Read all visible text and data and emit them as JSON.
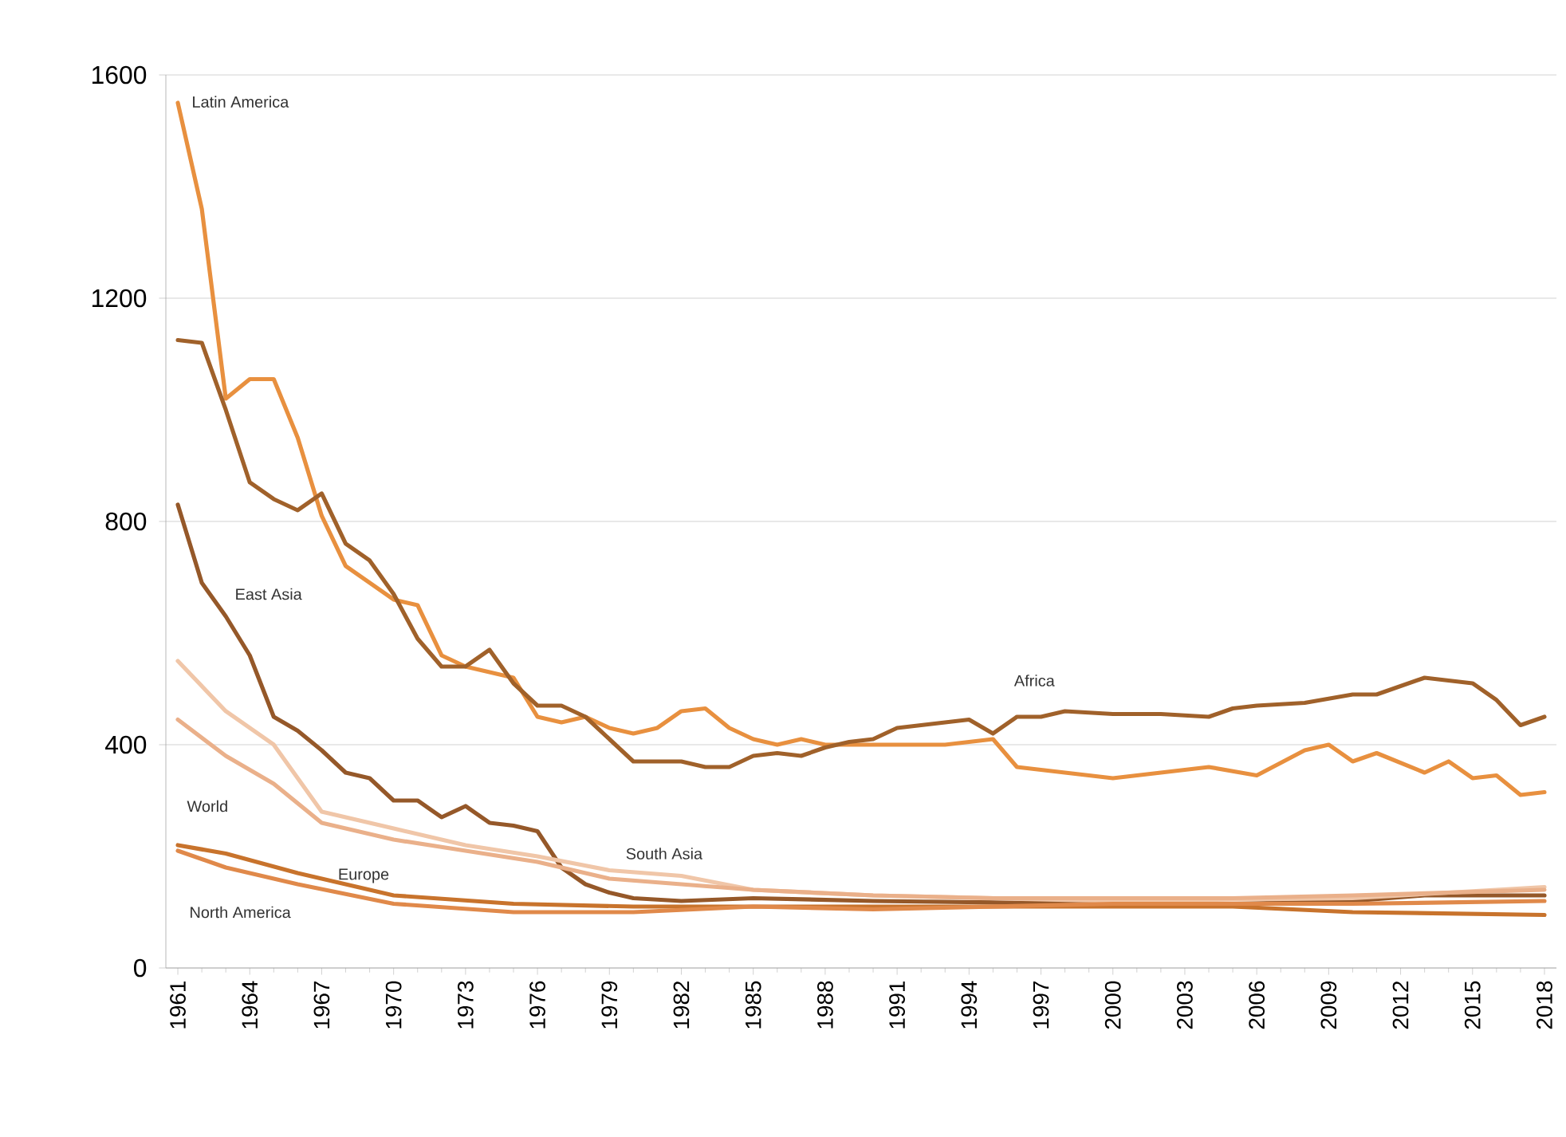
{
  "chart_data": {
    "type": "line",
    "xlim": [
      1960.5,
      2018.5
    ],
    "xticks": [
      1961,
      1964,
      1967,
      1970,
      1973,
      1976,
      1979,
      1982,
      1985,
      1988,
      1991,
      1994,
      1997,
      2000,
      2003,
      2006,
      2009,
      2012,
      2015,
      2018
    ],
    "ylim": [
      0,
      1600
    ],
    "yticks": [
      0,
      400,
      800,
      1200,
      1600
    ],
    "grid": "y",
    "marker": "none",
    "series": [
      {
        "name": "Latin America",
        "color": "#e8903f",
        "x": [
          1961,
          1962,
          1963,
          1964,
          1965,
          1966,
          1967,
          1968,
          1969,
          1970,
          1971,
          1972,
          1973,
          1974,
          1975,
          1976,
          1977,
          1978,
          1979,
          1980,
          1981,
          1982,
          1983,
          1984,
          1985,
          1986,
          1987,
          1988,
          1990,
          1993,
          1995,
          1996,
          1998,
          2000,
          2002,
          2004,
          2006,
          2008,
          2009,
          2010,
          2011,
          2013,
          2014,
          2015,
          2016,
          2017,
          2018
        ],
        "values": [
          1550,
          1360,
          1020,
          1055,
          1055,
          950,
          810,
          720,
          690,
          660,
          650,
          560,
          540,
          530,
          520,
          450,
          440,
          450,
          430,
          420,
          430,
          460,
          465,
          430,
          410,
          400,
          410,
          400,
          400,
          400,
          410,
          360,
          350,
          340,
          350,
          360,
          345,
          390,
          400,
          370,
          385,
          350,
          370,
          340,
          345,
          310,
          315
        ]
      },
      {
        "name": "Africa",
        "color": "#a0612a",
        "x": [
          1961,
          1962,
          1963,
          1964,
          1965,
          1966,
          1967,
          1968,
          1969,
          1970,
          1971,
          1972,
          1973,
          1974,
          1975,
          1976,
          1977,
          1978,
          1979,
          1980,
          1981,
          1982,
          1983,
          1984,
          1985,
          1986,
          1987,
          1988,
          1989,
          1990,
          1991,
          1992,
          1993,
          1994,
          1995,
          1996,
          1997,
          1998,
          2000,
          2002,
          2004,
          2005,
          2006,
          2008,
          2010,
          2011,
          2013,
          2014,
          2015,
          2016,
          2017,
          2018
        ],
        "values": [
          1125,
          1120,
          1000,
          870,
          840,
          820,
          850,
          760,
          730,
          670,
          590,
          540,
          540,
          570,
          510,
          470,
          470,
          450,
          410,
          370,
          370,
          370,
          360,
          360,
          380,
          385,
          380,
          395,
          405,
          410,
          430,
          435,
          440,
          445,
          420,
          450,
          450,
          460,
          455,
          455,
          450,
          465,
          470,
          475,
          490,
          490,
          520,
          515,
          510,
          480,
          435,
          450
        ]
      },
      {
        "name": "East Asia",
        "color": "#955829",
        "x": [
          1961,
          1962,
          1963,
          1964,
          1965,
          1966,
          1967,
          1968,
          1969,
          1970,
          1971,
          1972,
          1973,
          1974,
          1975,
          1976,
          1977,
          1978,
          1979,
          1980,
          1982,
          1985,
          1990,
          2000,
          2005,
          2010,
          2013,
          2018
        ],
        "values": [
          830,
          690,
          630,
          560,
          450,
          425,
          390,
          350,
          340,
          300,
          300,
          270,
          290,
          260,
          255,
          245,
          180,
          150,
          135,
          125,
          120,
          125,
          120,
          115,
          115,
          120,
          130,
          130
        ]
      },
      {
        "name": "South Asia",
        "color": "#f0c6a8",
        "x": [
          1961,
          1963,
          1965,
          1967,
          1970,
          1973,
          1976,
          1979,
          1982,
          1985,
          1990,
          2000,
          2010,
          2018
        ],
        "values": [
          550,
          460,
          400,
          280,
          250,
          220,
          200,
          175,
          165,
          140,
          130,
          120,
          125,
          145
        ]
      },
      {
        "name": "World",
        "color": "#eab08a",
        "x": [
          1961,
          1963,
          1965,
          1967,
          1970,
          1973,
          1976,
          1979,
          1982,
          1985,
          1990,
          1995,
          2000,
          2005,
          2010,
          2018
        ],
        "values": [
          445,
          380,
          330,
          260,
          230,
          210,
          190,
          160,
          150,
          140,
          130,
          125,
          125,
          125,
          130,
          140
        ]
      },
      {
        "name": "Europe",
        "color": "#c8732c",
        "x": [
          1961,
          1963,
          1966,
          1970,
          1975,
          1980,
          1990,
          2000,
          2005,
          2010,
          2018
        ],
        "values": [
          220,
          205,
          170,
          130,
          115,
          110,
          110,
          110,
          110,
          100,
          95
        ]
      },
      {
        "name": "North America",
        "color": "#e0894a",
        "x": [
          1961,
          1963,
          1966,
          1970,
          1975,
          1980,
          1985,
          1990,
          2000,
          2010,
          2018
        ],
        "values": [
          210,
          180,
          150,
          115,
          100,
          100,
          110,
          105,
          115,
          115,
          120
        ]
      }
    ]
  }
}
